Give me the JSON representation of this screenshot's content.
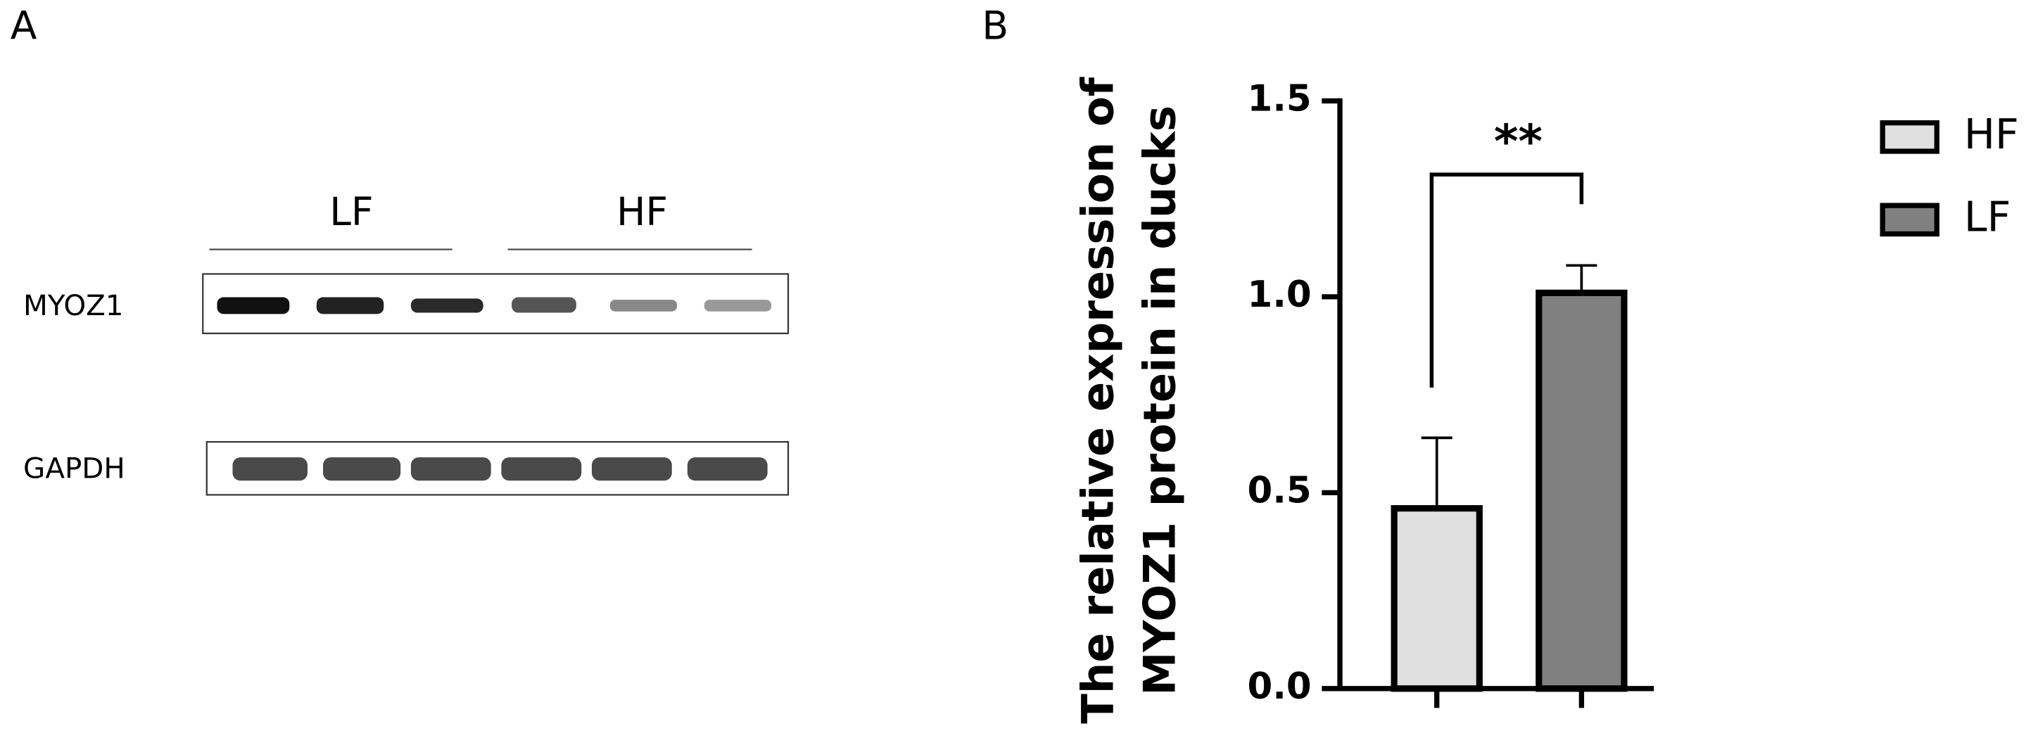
{
  "panel_a": {
    "label": "A",
    "groups": [
      "LF",
      "HF"
    ],
    "rows": [
      "MYOZ1",
      "GAPDH"
    ]
  },
  "chart_data": {
    "type": "bar",
    "panel_label": "B",
    "ylabel": [
      "The relative expression of",
      "MYOZ1 protein in ducks"
    ],
    "categories": [
      null,
      null
    ],
    "series": [
      {
        "name": "HF",
        "color": "#e0e0e0",
        "values": [
          0.46,
          null
        ],
        "errors": [
          0.18,
          null
        ]
      },
      {
        "name": "LF",
        "color": "#808080",
        "values": [
          null,
          1.01
        ],
        "errors": [
          null,
          0.07
        ]
      }
    ],
    "ylim": [
      0,
      1.5
    ],
    "yticks": [
      {
        "value": 0,
        "label": "0.0"
      },
      0.5,
      {
        "value": 1,
        "label": "1.0"
      },
      1.5
    ],
    "annotation": "**",
    "legend": "right"
  }
}
